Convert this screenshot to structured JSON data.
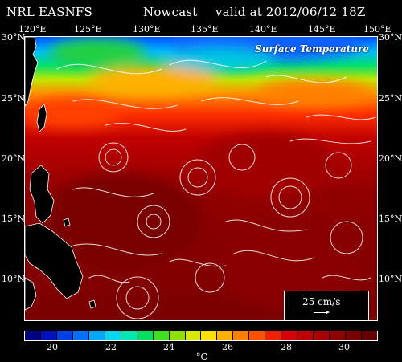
{
  "header": {
    "model": "NRL EASNFS",
    "product": "Nowcast",
    "valid": "valid at 2012/06/12 18Z"
  },
  "map": {
    "title": "Surface Temperature",
    "lon_labels": [
      "120°E",
      "125°E",
      "130°E",
      "135°E",
      "140°E",
      "145°E",
      "150°E"
    ],
    "lat_labels": [
      "30°N",
      "25°N",
      "20°N",
      "15°N",
      "10°N"
    ],
    "lon_range": [
      120,
      150
    ],
    "lat_range": [
      6,
      30
    ]
  },
  "vector_legend": {
    "label": "25 cm/s"
  },
  "colorbar": {
    "unit": "°C",
    "range": [
      19,
      31
    ],
    "tick_values": [
      "20",
      "22",
      "24",
      "26",
      "28",
      "30"
    ],
    "colors": [
      "#000080",
      "#0010c0",
      "#0040e8",
      "#0070ff",
      "#00a8ff",
      "#00d8f0",
      "#00e8b0",
      "#00e060",
      "#40e020",
      "#90e000",
      "#d8e800",
      "#ffe000",
      "#ffb000",
      "#ff8000",
      "#ff5000",
      "#f02000",
      "#d80000",
      "#c00000",
      "#a80000",
      "#900000",
      "#7a0000",
      "#650000"
    ]
  }
}
